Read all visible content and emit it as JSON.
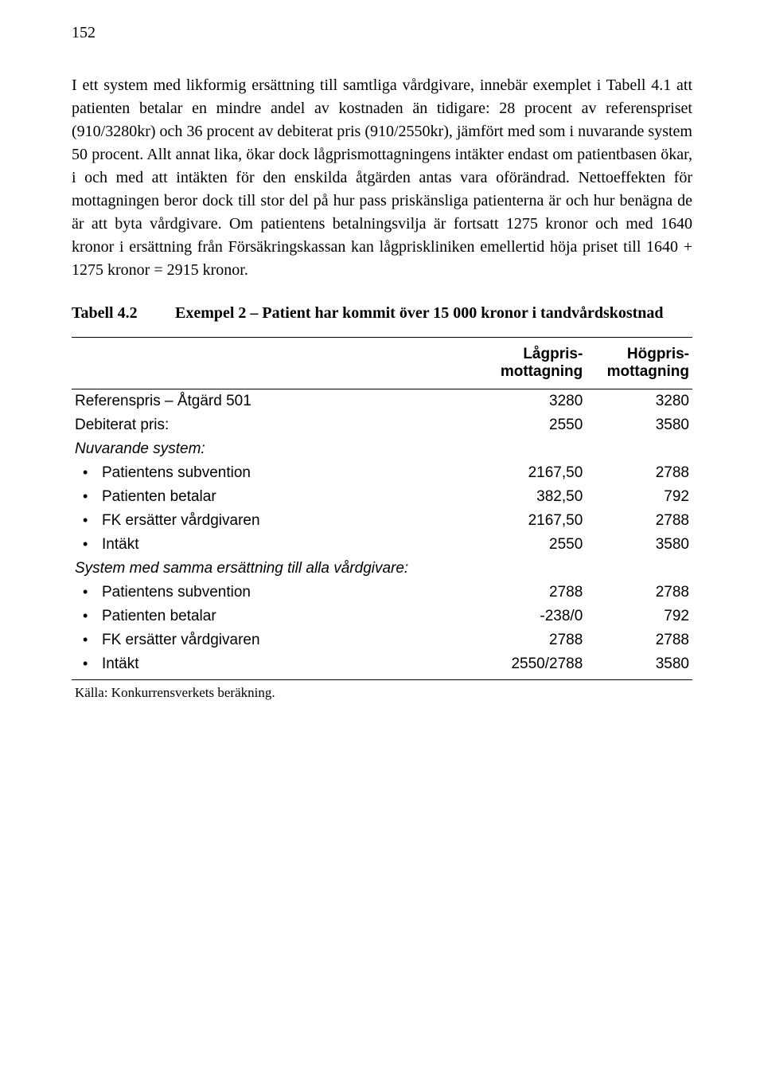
{
  "page_number": "152",
  "body_paragraph": "I ett system med likformig ersättning till samtliga vårdgivare, innebär exemplet i Tabell 4.1 att patienten betalar en mindre andel av kostnaden än tidigare: 28 procent av referenspriset (910/3280kr) och 36 procent av debiterat pris (910/2550kr), jämfört med som i nuvarande system 50 procent. Allt annat lika, ökar dock lågprismottagningens intäkter endast om patientbasen ökar, i och med att intäkten för den enskilda åtgärden antas vara oförändrad. Nettoeffekten för mottagningen beror dock till stor del på hur pass priskänsliga patienterna är och hur benägna de är att byta vårdgivare. Om patientens betalningsvilja är fortsatt 1275 kronor och med 1640 kronor i ersättning från Försäkringskassan kan lågpriskliniken emellertid höja priset till 1640 + 1275 kronor = 2915 kronor.",
  "table": {
    "label": "Tabell 4.2",
    "caption": "Exempel 2 – Patient har kommit över 15 000 kronor i tandvårdskostnad",
    "columns": {
      "col1": "",
      "col2_line1": "Lågpris-",
      "col2_line2": "mottagning",
      "col3_line1": "Högpris-",
      "col3_line2": "mottagning"
    },
    "rows": [
      {
        "label": "Referenspris – Åtgärd 501",
        "c2": "3280",
        "c3": "3280",
        "italic": false,
        "bullet": false
      },
      {
        "label": "Debiterat pris:",
        "c2": "2550",
        "c3": "3580",
        "italic": false,
        "bullet": false
      },
      {
        "label": "Nuvarande system:",
        "c2": "",
        "c3": "",
        "italic": true,
        "bullet": false
      },
      {
        "label": "Patientens subvention",
        "c2": "2167,50",
        "c3": "2788",
        "italic": false,
        "bullet": true
      },
      {
        "label": "Patienten betalar",
        "c2": "382,50",
        "c3": "792",
        "italic": false,
        "bullet": true
      },
      {
        "label": "FK ersätter vårdgivaren",
        "c2": "2167,50",
        "c3": "2788",
        "italic": false,
        "bullet": true
      },
      {
        "label": "Intäkt",
        "c2": "2550",
        "c3": "3580",
        "italic": false,
        "bullet": true
      },
      {
        "label": "System med samma ersättning till alla vårdgivare:",
        "c2": "",
        "c3": "",
        "italic": true,
        "bullet": false
      },
      {
        "label": "Patientens subvention",
        "c2": "2788",
        "c3": "2788",
        "italic": false,
        "bullet": true
      },
      {
        "label": "Patienten betalar",
        "c2": "-238/0",
        "c3": "792",
        "italic": false,
        "bullet": true
      },
      {
        "label": "FK ersätter vårdgivaren",
        "c2": "2788",
        "c3": "2788",
        "italic": false,
        "bullet": true
      },
      {
        "label": "Intäkt",
        "c2": "2550/2788",
        "c3": "3580",
        "italic": false,
        "bullet": true
      }
    ],
    "source": "Källa: Konkurrensverkets beräkning."
  }
}
